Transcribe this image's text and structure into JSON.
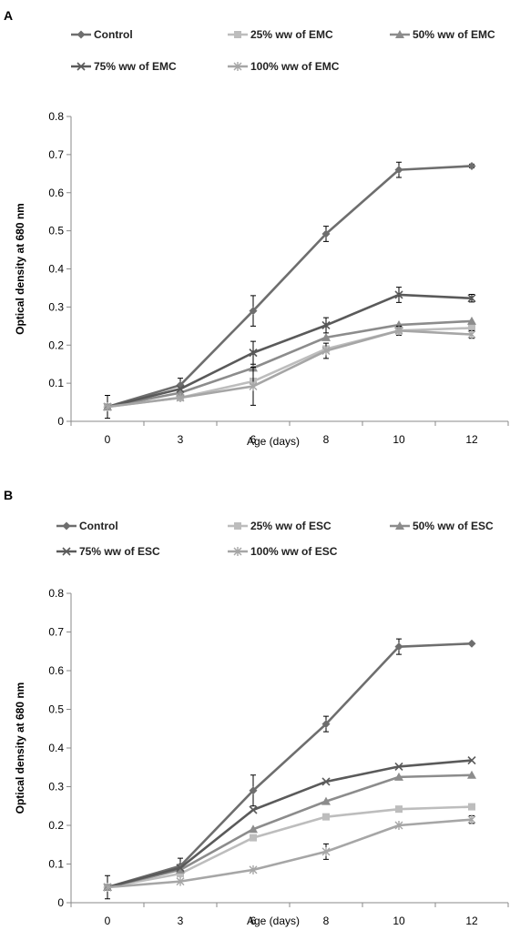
{
  "chart_data": [
    {
      "panel": "A",
      "type": "line",
      "xlabel": "Age (days)",
      "ylabel": "Optical density at 680 nm",
      "categories": [
        "0",
        "3",
        "6",
        "8",
        "10",
        "12"
      ],
      "ylim": [
        0,
        0.8
      ],
      "yticks": [
        "0",
        "0.1",
        "0.2",
        "0.3",
        "0.4",
        "0.5",
        "0.6",
        "0.7",
        "0.8"
      ],
      "legend_position": "top",
      "series": [
        {
          "name": "Control",
          "marker": "diamond",
          "color": "#6e6e6e",
          "values": [
            0.038,
            0.095,
            0.29,
            0.492,
            0.66,
            0.67
          ],
          "errors": [
            0.03,
            0.018,
            0.04,
            0.02,
            0.02,
            0.005
          ]
        },
        {
          "name": "25% ww of EMC",
          "marker": "square",
          "color": "#bdbdbd",
          "values": [
            0.038,
            0.062,
            0.105,
            0.19,
            0.238,
            0.245
          ],
          "errors": [
            0,
            0,
            0,
            0,
            0,
            0
          ]
        },
        {
          "name": "50% ww of EMC",
          "marker": "triangle",
          "color": "#8c8c8c",
          "values": [
            0.038,
            0.075,
            0.14,
            0.22,
            0.253,
            0.263
          ],
          "errors": [
            0,
            0,
            0,
            0,
            0,
            0
          ]
        },
        {
          "name": "75% ww of EMC",
          "marker": "x",
          "color": "#5a5a5a",
          "values": [
            0.038,
            0.085,
            0.18,
            0.252,
            0.332,
            0.323
          ],
          "errors": [
            0,
            0,
            0.03,
            0.02,
            0.02,
            0.01
          ]
        },
        {
          "name": "100% ww of EMC",
          "marker": "star",
          "color": "#a6a6a6",
          "values": [
            0.038,
            0.062,
            0.092,
            0.185,
            0.238,
            0.228
          ],
          "errors": [
            0,
            0,
            0.05,
            0.02,
            0.012,
            0.01
          ]
        }
      ]
    },
    {
      "panel": "B",
      "type": "line",
      "xlabel": "Age (days)",
      "ylabel": "Optical density at 680 nm",
      "categories": [
        "0",
        "3",
        "6",
        "8",
        "10",
        "12"
      ],
      "ylim": [
        0,
        0.8
      ],
      "yticks": [
        "0",
        "0.1",
        "0.2",
        "0.3",
        "0.4",
        "0.5",
        "0.6",
        "0.7",
        "0.8"
      ],
      "legend_position": "top",
      "series": [
        {
          "name": "Control",
          "marker": "diamond",
          "color": "#6e6e6e",
          "values": [
            0.04,
            0.095,
            0.29,
            0.462,
            0.662,
            0.67
          ],
          "errors": [
            0.03,
            0.02,
            0.04,
            0.02,
            0.02,
            0
          ]
        },
        {
          "name": "25% ww of ESC",
          "marker": "square",
          "color": "#bdbdbd",
          "values": [
            0.04,
            0.075,
            0.168,
            0.222,
            0.242,
            0.248
          ],
          "errors": [
            0,
            0,
            0,
            0,
            0,
            0
          ]
        },
        {
          "name": "50% ww of ESC",
          "marker": "triangle",
          "color": "#8c8c8c",
          "values": [
            0.04,
            0.085,
            0.19,
            0.262,
            0.325,
            0.33
          ],
          "errors": [
            0,
            0,
            0,
            0,
            0,
            0
          ]
        },
        {
          "name": "75% ww of ESC",
          "marker": "x",
          "color": "#5a5a5a",
          "values": [
            0.04,
            0.09,
            0.24,
            0.313,
            0.352,
            0.368
          ],
          "errors": [
            0,
            0,
            0,
            0,
            0,
            0
          ]
        },
        {
          "name": "100% ww of ESC",
          "marker": "star",
          "color": "#a6a6a6",
          "values": [
            0.04,
            0.055,
            0.085,
            0.132,
            0.2,
            0.215
          ],
          "errors": [
            0,
            0,
            0,
            0.02,
            0,
            0.01
          ]
        }
      ]
    }
  ]
}
